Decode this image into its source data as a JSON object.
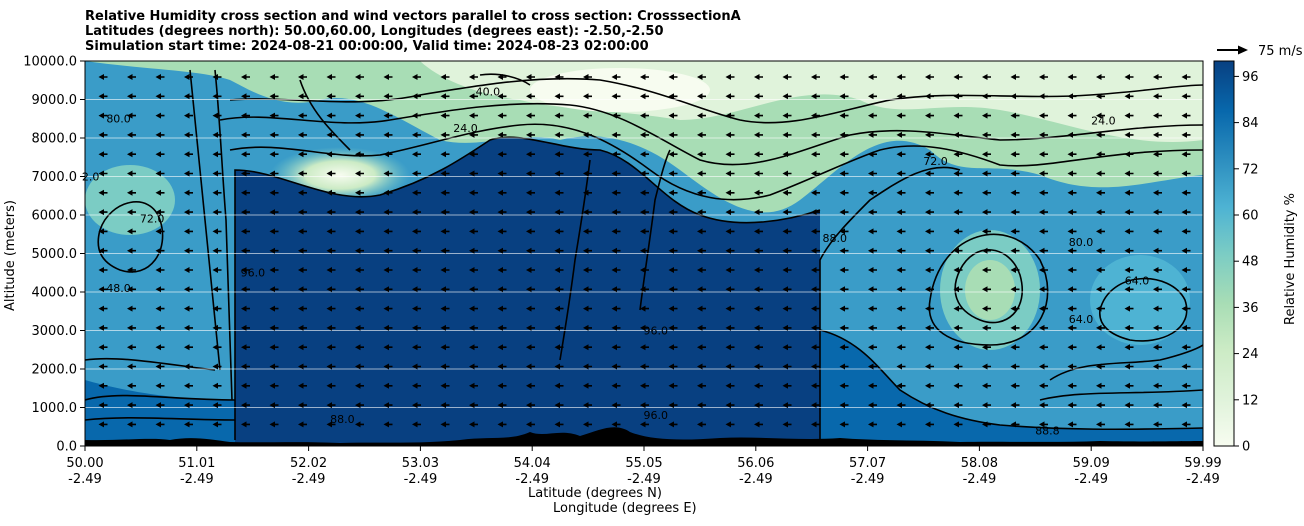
{
  "title": {
    "line1": "Relative Humidity cross section and wind vectors parallel to cross section: CrosssectionA",
    "line2": "Latitudes (degrees north): 50.00,60.00, Longitudes (degrees east): -2.50,-2.50",
    "line3": "Simulation start time: 2024-08-21 00:00:00, Valid time: 2024-08-23 02:00:00"
  },
  "reference_vector_label": "75 m/s",
  "chart_data": {
    "type": "heatmap",
    "ylabel": "Altitude (meters)",
    "xlabel_line1": "Latitude (degrees N)",
    "xlabel_line2": "Longitude (degrees E)",
    "ylim": [
      0,
      10000
    ],
    "y_ticks": [
      "0.0",
      "1000.0",
      "2000.0",
      "3000.0",
      "4000.0",
      "5000.0",
      "6000.0",
      "7000.0",
      "8000.0",
      "9000.0",
      "10000.0"
    ],
    "x_ticks": [
      {
        "lat": "50.00",
        "lon": "-2.49"
      },
      {
        "lat": "51.01",
        "lon": "-2.49"
      },
      {
        "lat": "52.02",
        "lon": "-2.49"
      },
      {
        "lat": "53.03",
        "lon": "-2.49"
      },
      {
        "lat": "54.04",
        "lon": "-2.49"
      },
      {
        "lat": "55.05",
        "lon": "-2.49"
      },
      {
        "lat": "56.06",
        "lon": "-2.49"
      },
      {
        "lat": "57.07",
        "lon": "-2.49"
      },
      {
        "lat": "58.08",
        "lon": "-2.49"
      },
      {
        "lat": "59.09",
        "lon": "-2.49"
      },
      {
        "lat": "59.99",
        "lon": "-2.49"
      }
    ],
    "grid": "horizontal",
    "colorbar": {
      "label": "Relative Humidity %",
      "range": [
        0,
        100
      ],
      "ticks": [
        "0",
        "12",
        "24",
        "36",
        "48",
        "60",
        "72",
        "84",
        "96"
      ],
      "colormap": "GnBu"
    },
    "contour_labels": [
      {
        "text": "40.0",
        "lat": 53.6,
        "alt": 9100
      },
      {
        "text": "24.0",
        "lat": 53.4,
        "alt": 8150
      },
      {
        "text": "80.0",
        "lat": 50.3,
        "alt": 8400
      },
      {
        "text": "24.0",
        "lat": 59.1,
        "alt": 8350
      },
      {
        "text": "72.0",
        "lat": 57.6,
        "alt": 7300
      },
      {
        "text": "88.0",
        "lat": 56.7,
        "alt": 5300
      },
      {
        "text": "96.0",
        "lat": 51.5,
        "alt": 4400
      },
      {
        "text": "96.0",
        "lat": 55.1,
        "alt": 2900
      },
      {
        "text": "96.0",
        "lat": 55.1,
        "alt": 700
      },
      {
        "text": "88.0",
        "lat": 52.3,
        "alt": 600
      },
      {
        "text": "80.0",
        "lat": 58.9,
        "alt": 5200
      },
      {
        "text": "64.0",
        "lat": 59.4,
        "alt": 4200
      },
      {
        "text": "64.0",
        "lat": 58.9,
        "alt": 3200
      },
      {
        "text": "72.0",
        "lat": 50.6,
        "alt": 5800
      },
      {
        "text": "48.0",
        "lat": 50.3,
        "alt": 4000
      },
      {
        "text": "2.0",
        "lat": 50.05,
        "alt": 6900
      },
      {
        "text": "88.8",
        "lat": 58.6,
        "alt": 300
      }
    ]
  }
}
